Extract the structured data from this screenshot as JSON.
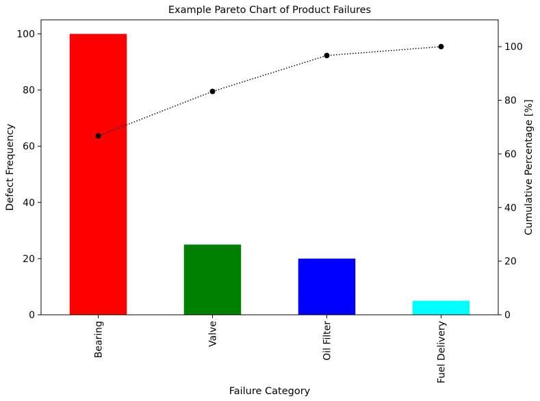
{
  "chart_data": {
    "type": "bar",
    "title": "Example Pareto Chart of Product Failures",
    "xlabel": "Failure Category",
    "ylabel": "Defect Frequency",
    "y2label": "Cumulative Percentage [%]",
    "categories": [
      "Bearing",
      "Valve",
      "Oil Filter",
      "Fuel Delivery"
    ],
    "series": [
      {
        "type": "bar",
        "values": [
          100,
          25,
          20,
          5
        ],
        "colors": [
          "#ff0000",
          "#008000",
          "#0000ff",
          "#00ffff"
        ]
      },
      {
        "type": "line",
        "axis": "right",
        "values": [
          66.7,
          83.3,
          96.7,
          100.0
        ],
        "color": "#000000",
        "line_style": "dotted",
        "marker": "circle"
      }
    ],
    "ylim": [
      0,
      105
    ],
    "y2lim": [
      0,
      110
    ],
    "yticks": [
      0,
      20,
      40,
      60,
      80,
      100
    ],
    "y2ticks": [
      0,
      20,
      40,
      60,
      80,
      100
    ],
    "grid": false,
    "legend": "none"
  }
}
